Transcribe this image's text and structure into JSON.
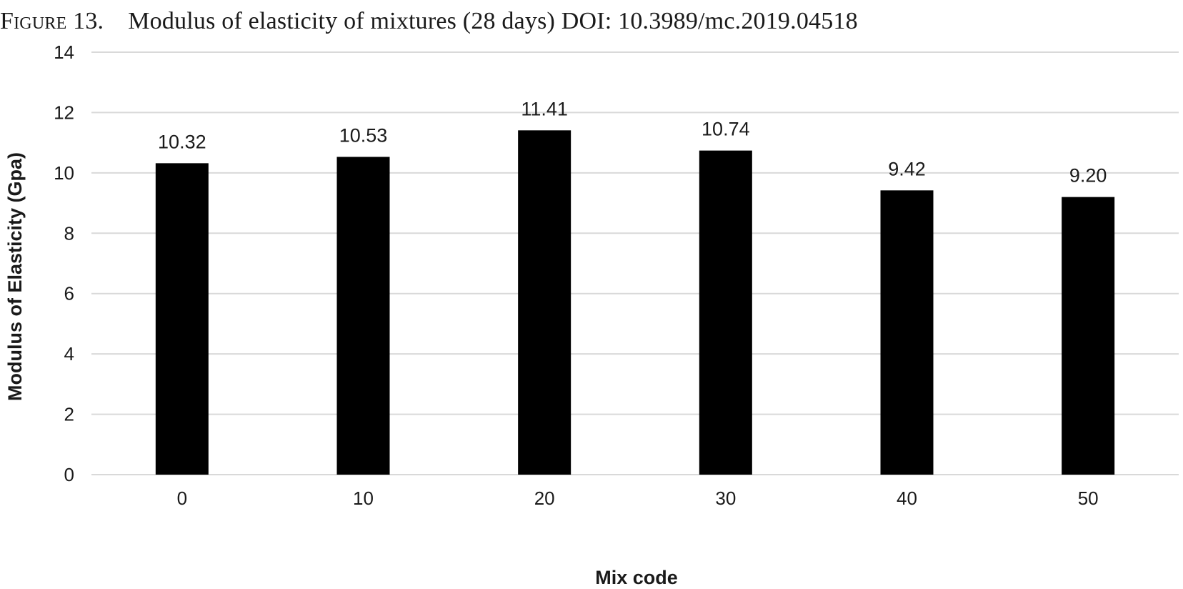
{
  "caption": {
    "label": "Figure 13.",
    "text": "Modulus of elasticity of mixtures (28 days) DOI: 10.3989/mc.2019.04518"
  },
  "chart_data": {
    "type": "bar",
    "categories": [
      "0",
      "10",
      "20",
      "30",
      "40",
      "50"
    ],
    "values": [
      10.32,
      10.53,
      11.41,
      10.74,
      9.42,
      9.2
    ],
    "data_labels": [
      "10.32",
      "10.53",
      "11.41",
      "10.74",
      "9.42",
      "9.20"
    ],
    "xlabel": "Mix code",
    "ylabel": "Modulus of Elasticity (Gpa)",
    "ylim": [
      0,
      14
    ],
    "yticks": [
      0,
      2,
      4,
      6,
      8,
      10,
      12,
      14
    ],
    "grid": true,
    "bar_color": "#000000",
    "grid_color": "#d9d9d9"
  }
}
